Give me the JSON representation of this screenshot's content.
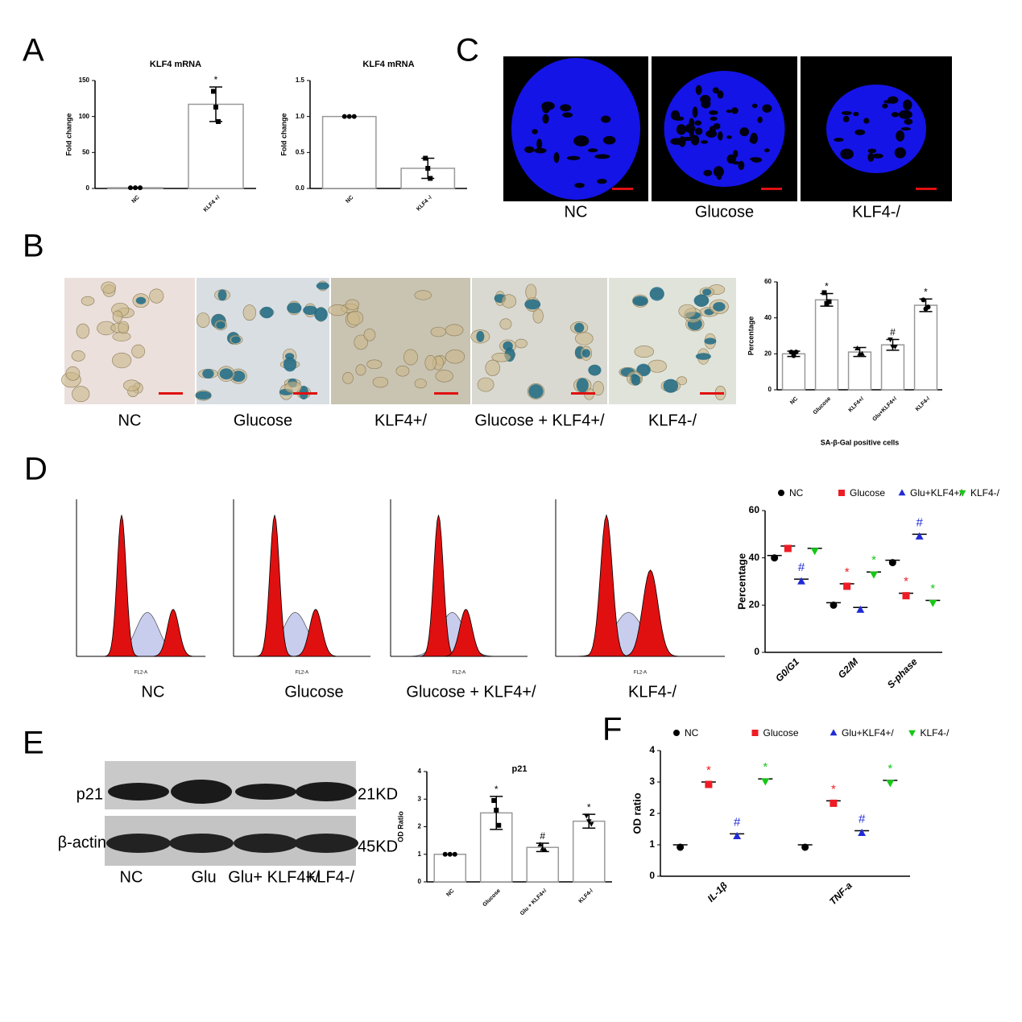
{
  "panel_letters": [
    "A",
    "B",
    "C",
    "D",
    "E",
    "F"
  ],
  "panel_b_images": {
    "captions": [
      "NC",
      "Glucose",
      "KLF4+/",
      "Glucose + KLF4+/",
      "KLF4-/"
    ]
  },
  "panel_c_images": {
    "captions": [
      "NC",
      "Glucose",
      "KLF4-/"
    ]
  },
  "panel_d_histograms": {
    "captions": [
      "NC",
      "Glucose",
      "Glucose + KLF4+/",
      "KLF4-/"
    ],
    "x_label": "FL2-A"
  },
  "panel_e_blot": {
    "rows": [
      "p21",
      "β-actin"
    ],
    "sizes": [
      "21KD",
      "45KD"
    ],
    "lanes": [
      "NC",
      "Glu",
      "Glu+ KLF4+/",
      "KLF4-/"
    ]
  },
  "chart_data": [
    {
      "type": "bar",
      "title": "KLF4 mRNA",
      "y_label": "Fold change",
      "categories": [
        "NC",
        "KLF4 +/"
      ],
      "values": [
        1,
        117
      ],
      "errors": [
        0,
        24
      ],
      "points": [
        [
          1,
          1,
          1
        ],
        [
          135,
          113,
          93
        ]
      ],
      "annotations": [
        null,
        "*"
      ],
      "color": "#999999",
      "ylim": [
        0,
        150
      ],
      "yticks": [
        0,
        50,
        100,
        150
      ]
    },
    {
      "type": "bar",
      "title": "KLF4 mRNA",
      "y_label": "Fold change",
      "categories": [
        "NC",
        "KLF4 -/"
      ],
      "values": [
        1,
        0.28
      ],
      "errors": [
        0,
        0.14
      ],
      "points": [
        [
          1,
          1,
          1
        ],
        [
          0.42,
          0.28,
          0.14
        ]
      ],
      "annotations": [
        null,
        null
      ],
      "color": "#999999",
      "ylim": [
        0,
        1.5
      ],
      "yticks": [
        {
          "value": 0,
          "label": "0.0"
        },
        0.5,
        {
          "value": 1,
          "label": "1.0"
        },
        1.5
      ]
    },
    {
      "type": "bar",
      "y_label": "Percentage",
      "x_label": "SA-β-Gal positive cells",
      "categories": [
        "NC",
        "Glucose",
        "KLF4+/",
        "Glu+KLF4+/",
        "KLF4-/"
      ],
      "values": [
        20,
        50,
        21,
        25,
        47
      ],
      "errors": [
        1.5,
        3.5,
        2.5,
        3,
        3.5
      ],
      "points": [
        [
          21,
          19,
          21
        ],
        [
          54,
          48,
          49
        ],
        [
          23,
          20,
          20
        ],
        [
          28,
          24,
          24
        ],
        [
          50,
          45,
          46
        ]
      ],
      "annotations": [
        null,
        "*",
        null,
        "#",
        "*"
      ],
      "color": "#999999",
      "ylim": [
        0,
        60
      ],
      "yticks": [
        0,
        20,
        40,
        60
      ]
    },
    {
      "type": "dot",
      "y_label": "Percentage",
      "categories": [
        "G0/G1",
        "G2/M",
        "S-phase"
      ],
      "series": [
        {
          "name": "NC",
          "color": "#000000",
          "marker": "circle",
          "values": [
            41,
            21,
            39
          ],
          "annotations": [
            null,
            null,
            null
          ]
        },
        {
          "name": "Glucose",
          "color": "#ee1c24",
          "marker": "square",
          "values": [
            45,
            29,
            25
          ],
          "annotations": [
            null,
            "*",
            "*"
          ]
        },
        {
          "name": "Glu+KLF4+/",
          "color": "#1f2bd6",
          "marker": "triangle-up",
          "values": [
            31,
            19,
            50
          ],
          "annotations": [
            "#",
            null,
            "#"
          ]
        },
        {
          "name": "KLF4-/",
          "color": "#16c816",
          "marker": "triangle-down",
          "values": [
            44,
            34,
            22
          ],
          "annotations": [
            null,
            "*",
            "*"
          ]
        }
      ],
      "ylim": [
        0,
        60
      ],
      "yticks": [
        0,
        20,
        40,
        60
      ]
    },
    {
      "type": "bar",
      "title": "p21",
      "y_label": "OD Ratio",
      "categories": [
        "NC",
        "Glucose",
        "Glu + KLF4+/",
        "KLF4-/"
      ],
      "values": [
        1,
        2.5,
        1.25,
        2.2
      ],
      "errors": [
        0,
        0.6,
        0.15,
        0.25
      ],
      "points": [
        [
          1,
          1,
          1
        ],
        [
          2.95,
          2.6,
          2.05
        ],
        [
          1.35,
          1.2,
          1.15
        ],
        [
          2.4,
          2.2,
          2.1
        ]
      ],
      "annotations": [
        null,
        "*",
        "#",
        "*"
      ],
      "color": "#999999",
      "ylim": [
        0,
        4
      ],
      "yticks": [
        0,
        1,
        2,
        3,
        4
      ]
    },
    {
      "type": "dot",
      "y_label": "OD ratio",
      "categories": [
        "IL-1β",
        "TNF-a"
      ],
      "series": [
        {
          "name": "NC",
          "color": "#000000",
          "marker": "circle",
          "values": [
            1,
            1
          ],
          "annotations": [
            null,
            null
          ]
        },
        {
          "name": "Glucose",
          "color": "#ee1c24",
          "marker": "square",
          "values": [
            3.0,
            2.4
          ],
          "annotations": [
            "*",
            "*"
          ]
        },
        {
          "name": "Glu+KLF4+/",
          "color": "#1f2bd6",
          "marker": "triangle-up",
          "values": [
            1.35,
            1.45
          ],
          "annotations": [
            "#",
            "#"
          ]
        },
        {
          "name": "KLF4-/",
          "color": "#16c816",
          "marker": "triangle-down",
          "values": [
            3.1,
            3.05
          ],
          "annotations": [
            "*",
            "*"
          ]
        }
      ],
      "ylim": [
        0,
        4
      ],
      "yticks": [
        0,
        1,
        2,
        3,
        4
      ]
    }
  ]
}
